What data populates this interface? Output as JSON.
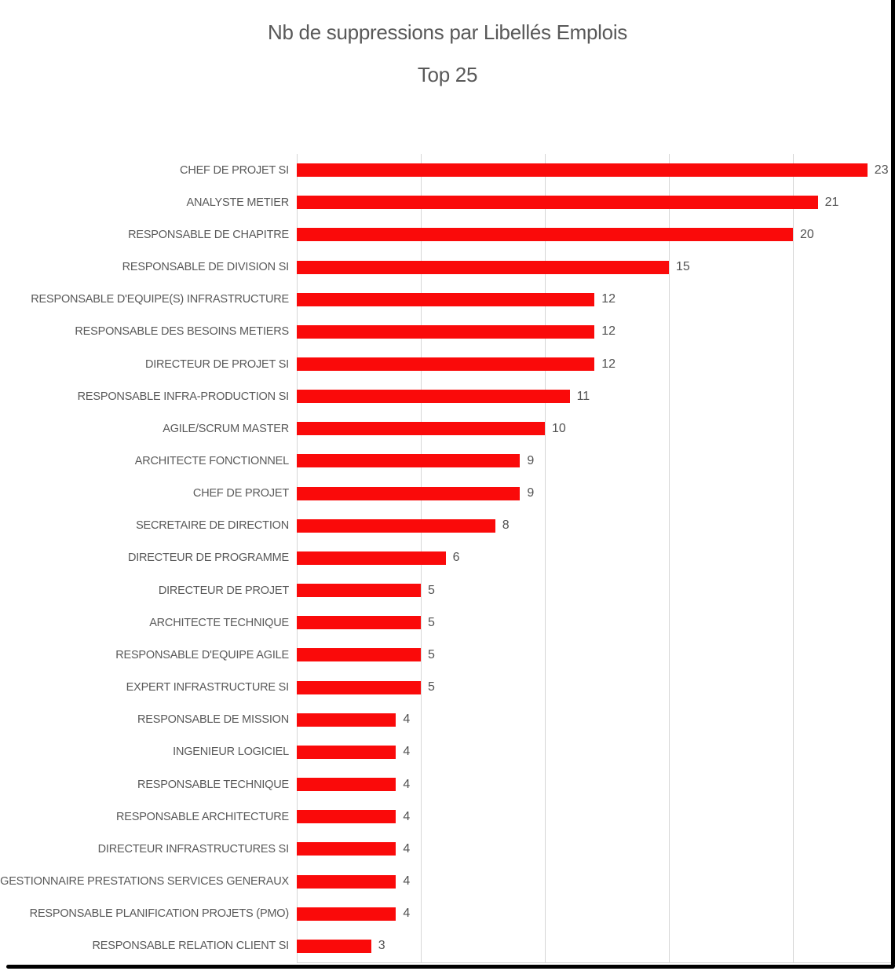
{
  "chart_data": {
    "type": "bar",
    "orientation": "horizontal",
    "title": "Nb de suppressions par Libellés Emplois",
    "subtitle": "Top 25",
    "categories": [
      "CHEF DE PROJET SI",
      "ANALYSTE METIER",
      "RESPONSABLE DE CHAPITRE",
      "RESPONSABLE DE DIVISION SI",
      "RESPONSABLE D'EQUIPE(S) INFRASTRUCTURE",
      "RESPONSABLE DES BESOINS METIERS",
      "DIRECTEUR DE PROJET SI",
      "RESPONSABLE INFRA-PRODUCTION SI",
      "AGILE/SCRUM MASTER",
      "ARCHITECTE FONCTIONNEL",
      "CHEF DE PROJET",
      "SECRETAIRE DE DIRECTION",
      "DIRECTEUR DE PROGRAMME",
      "DIRECTEUR DE PROJET",
      "ARCHITECTE TECHNIQUE",
      "RESPONSABLE D'EQUIPE AGILE",
      "EXPERT INFRASTRUCTURE SI",
      "RESPONSABLE DE MISSION",
      "INGENIEUR LOGICIEL",
      "RESPONSABLE TECHNIQUE",
      "RESPONSABLE ARCHITECTURE",
      "DIRECTEUR INFRASTRUCTURES SI",
      "GESTIONNAIRE PRESTATIONS SERVICES GENERAUX",
      "RESPONSABLE PLANIFICATION PROJETS (PMO)",
      "RESPONSABLE RELATION CLIENT SI"
    ],
    "values": [
      23,
      21,
      20,
      15,
      12,
      12,
      12,
      11,
      10,
      9,
      9,
      8,
      6,
      5,
      5,
      5,
      5,
      4,
      4,
      4,
      4,
      4,
      4,
      4,
      3
    ],
    "data_labels": true,
    "legend": "none",
    "xlim": [
      0,
      24
    ],
    "x_gridlines": [
      0,
      5,
      10,
      15,
      20
    ],
    "grid": true,
    "bar_color": "#fa0a0a",
    "grid_color": "#d6d6d6",
    "text_color": "#595959",
    "frame_color": "#000000"
  }
}
